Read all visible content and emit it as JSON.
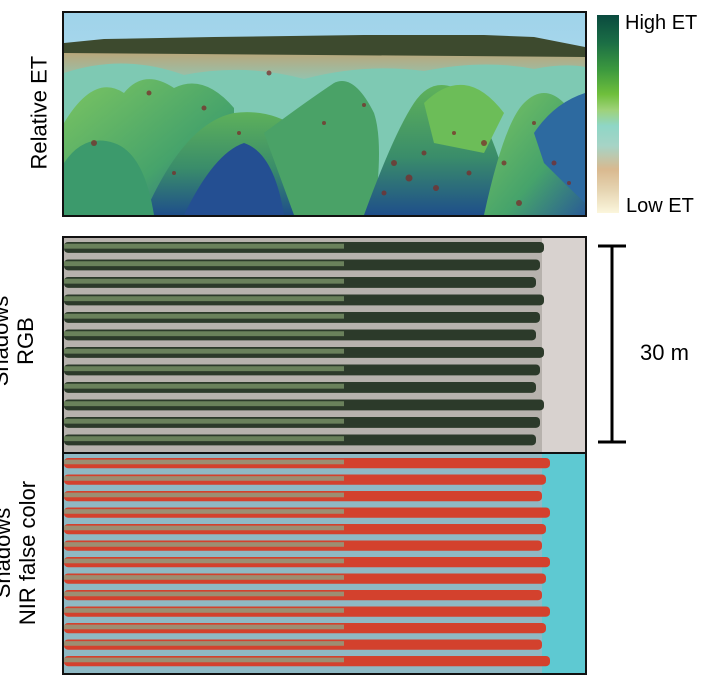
{
  "panels": {
    "relative_et": {
      "label": "Relative ET"
    },
    "shadows_rgb": {
      "label_line1": "Shadows",
      "label_line2": "RGB"
    },
    "shadows_nir": {
      "label_line1": "Shadows",
      "label_line2": "NIR false color"
    }
  },
  "legend": {
    "high_label": "High ET",
    "low_label": "Low ET",
    "colors": [
      "#0a4a3f",
      "#1b6e45",
      "#3d9a3e",
      "#6fbf3c",
      "#9fd27a",
      "#8fd6c6",
      "#a6d4c6",
      "#d9b98f",
      "#e5d3b0",
      "#fbf6dc"
    ]
  },
  "scale": {
    "label": "30 m"
  }
}
